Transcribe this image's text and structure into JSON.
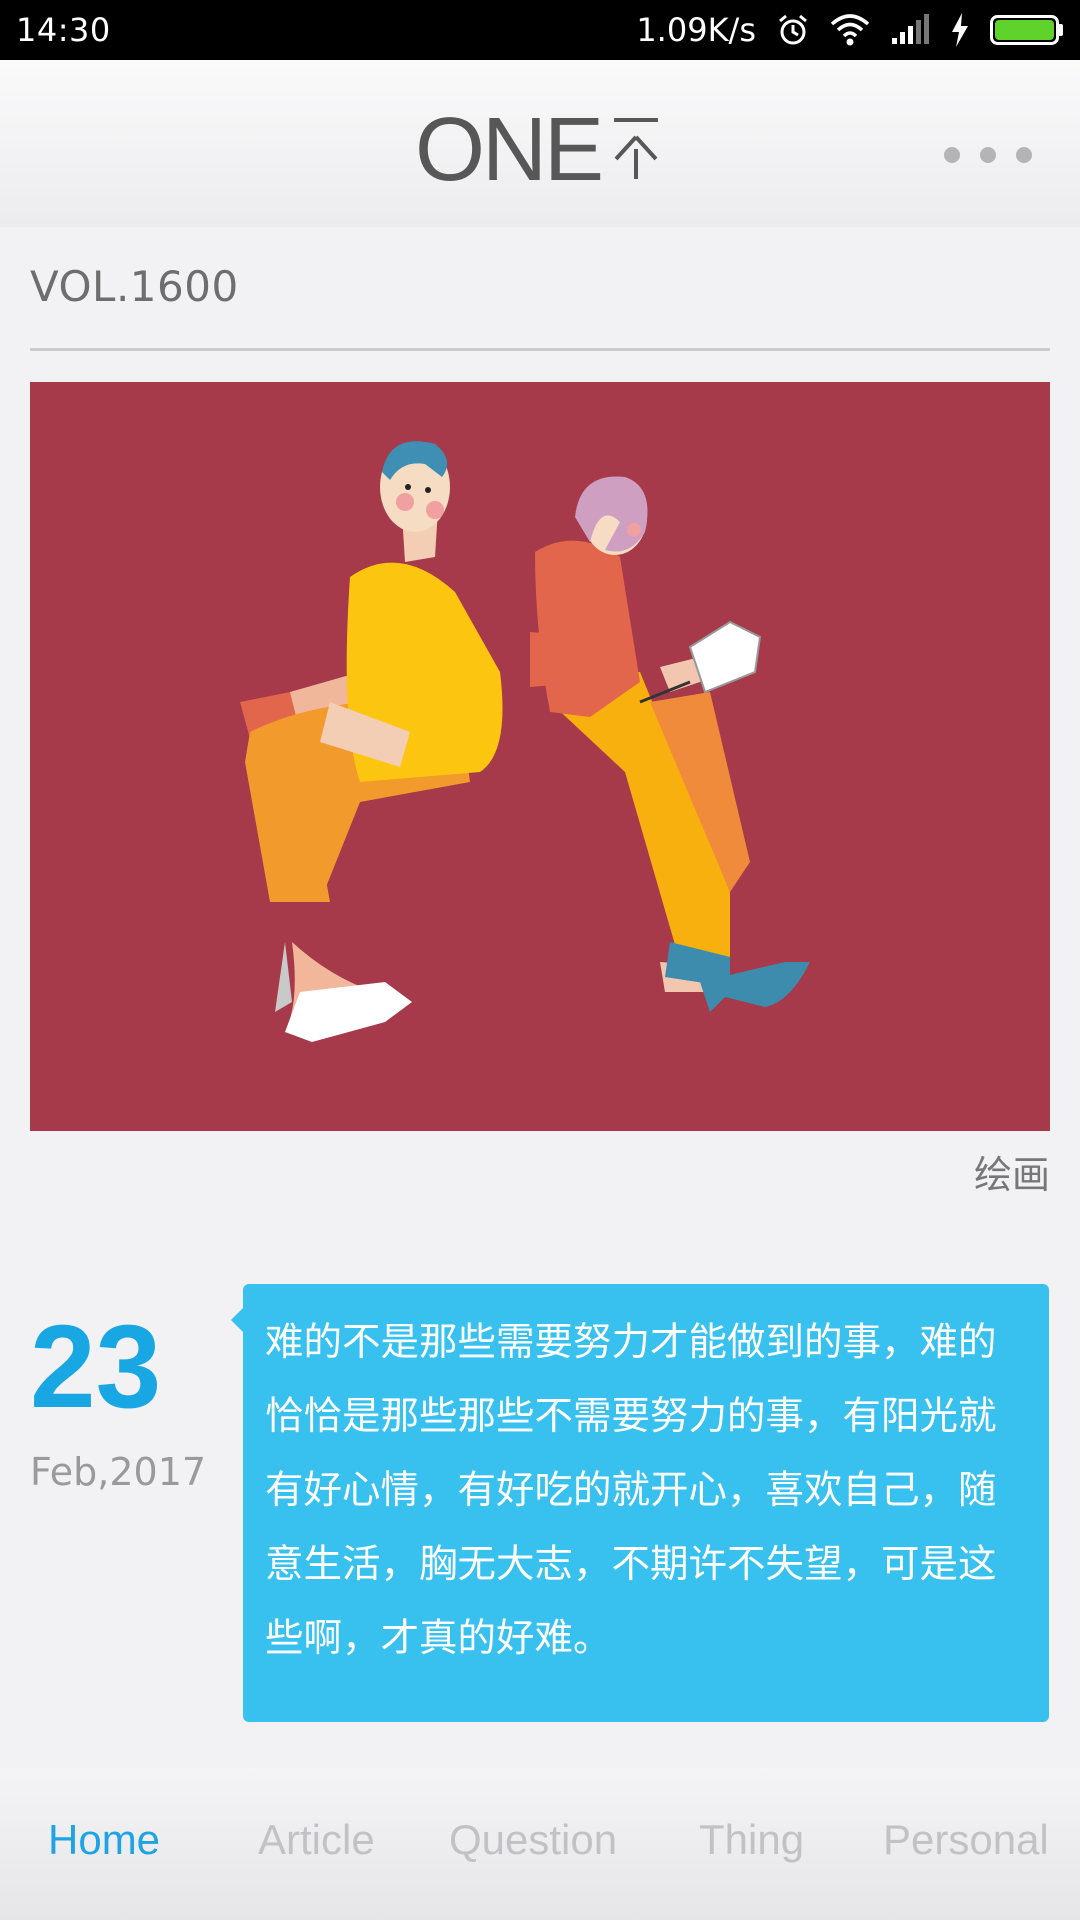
{
  "status_bar": {
    "time": "14:30",
    "network_speed": "1.09K/s",
    "icons": [
      "alarm-icon",
      "wifi-icon",
      "signal-icon",
      "charging-icon",
      "battery-icon"
    ],
    "battery_color": "#5fd22c"
  },
  "header": {
    "logo_text": "ONE",
    "logo_mark": "一个",
    "menu_icon": "more-dots-icon"
  },
  "issue": {
    "volume": "VOL.1600",
    "image_caption": "绘画",
    "day": "23",
    "month_year": "Feb,2017",
    "quote": "难的不是那些需要努力才能做到的事，难的恰恰是那些那些不需要努力的事，有阳光就有好心情，有好吃的就开心，喜欢自己，随意生活，胸无大志，不期许不失望，可是这些啊，才真的好难。"
  },
  "colors": {
    "accent": "#18a7e3",
    "quote_background": "#38c1ef",
    "illustration_background": "#a63a4a"
  },
  "tabs": [
    {
      "label": "Home",
      "active": true
    },
    {
      "label": "Article",
      "active": false
    },
    {
      "label": "Question",
      "active": false
    },
    {
      "label": "Thing",
      "active": false
    },
    {
      "label": "Personal",
      "active": false
    }
  ]
}
